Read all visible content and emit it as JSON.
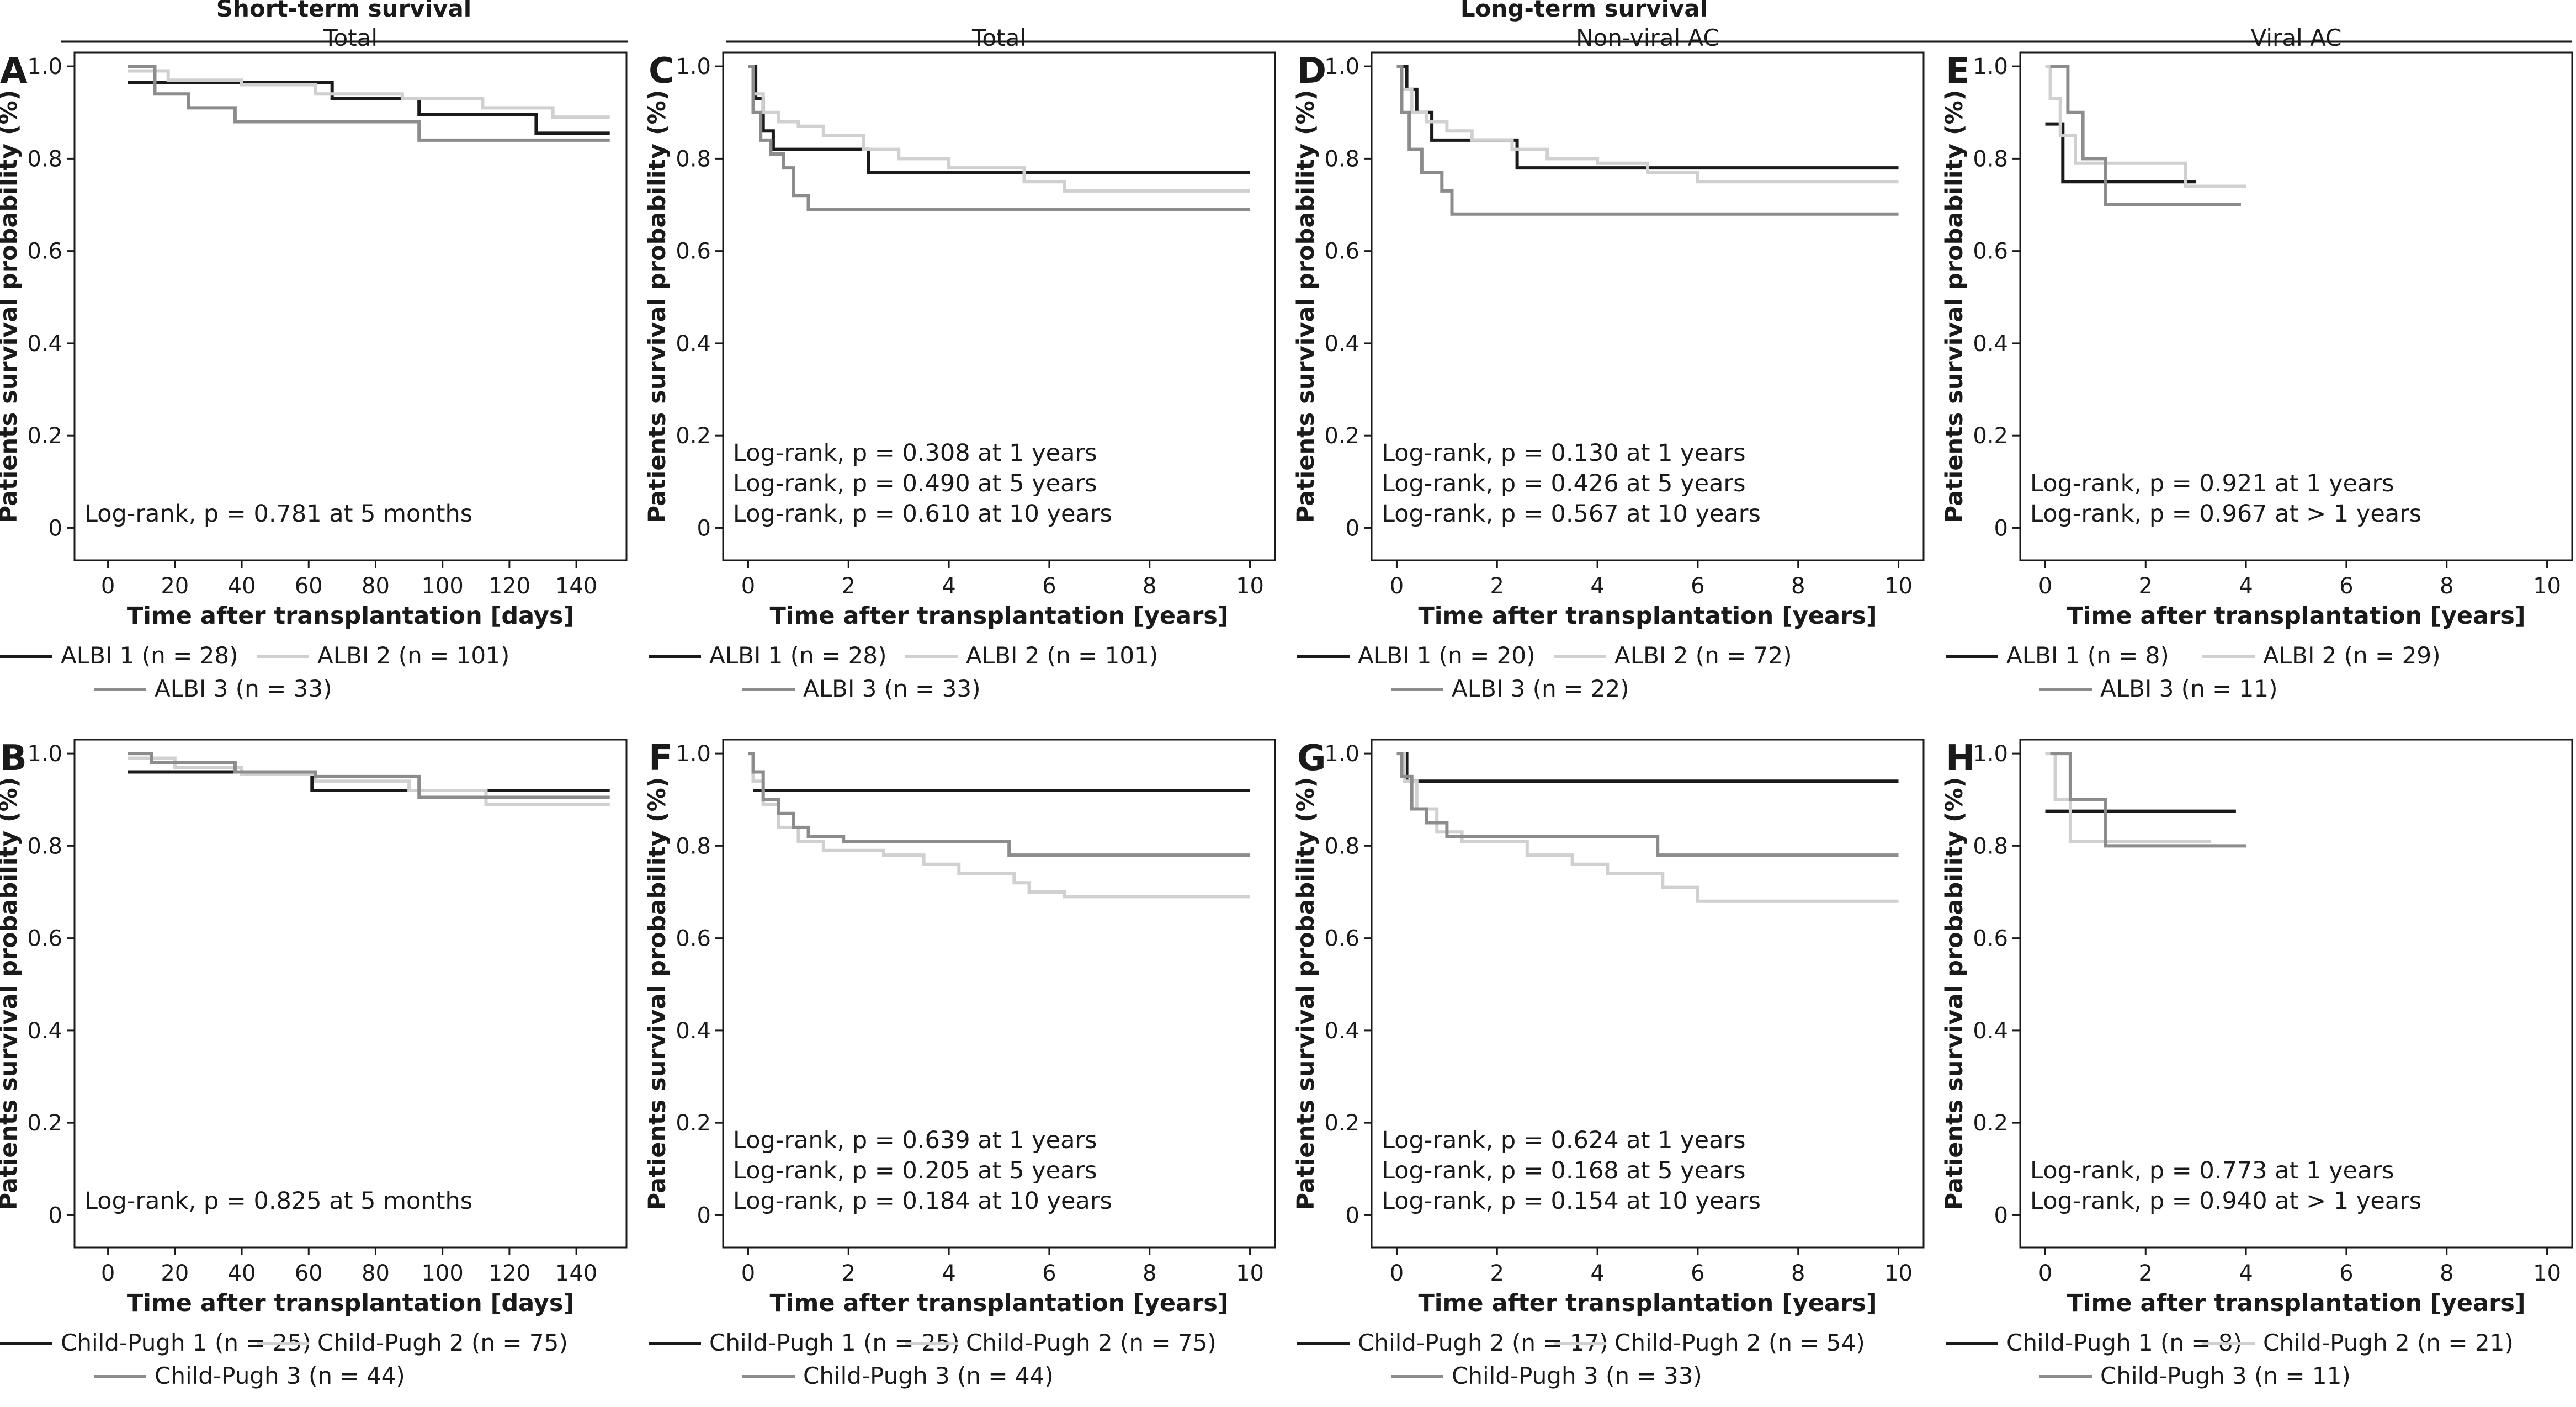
{
  "headers": {
    "short": "Short-term survival",
    "long": "Long-term survival"
  },
  "colors": {
    "group1": "#1a1a1a",
    "group2": "#d0d0d0",
    "group3": "#8c8c8c",
    "axis": "#1a1a1a"
  },
  "chart_data": [
    {
      "id": "A",
      "type": "line",
      "title": "Total",
      "xlabel": "Time after transplantation [days]",
      "ylabel": "Patients survival probability (%)",
      "xlim": [
        -10,
        155
      ],
      "xticks": [
        0,
        20,
        40,
        60,
        80,
        100,
        120,
        140
      ],
      "xticklabels": [
        "0",
        "20",
        "40",
        "60",
        "80",
        "100",
        "120",
        "140"
      ],
      "ylim": [
        -0.07,
        1.03
      ],
      "yticks": [
        0,
        0.2,
        0.4,
        0.6,
        0.8,
        1.0
      ],
      "yticklabels": [
        "0",
        "0.2",
        "0.4",
        "0.6",
        "0.8",
        "1.0"
      ],
      "annotations": [
        "Log-rank, p = 0.781 at 5 months"
      ],
      "series": [
        {
          "name": "ALBI 1 (n = 28)",
          "x": [
            6,
            67,
            67,
            93,
            93,
            128,
            128,
            150
          ],
          "y": [
            0.965,
            0.965,
            0.93,
            0.93,
            0.895,
            0.895,
            0.855,
            0.855
          ]
        },
        {
          "name": "ALBI 2 (n = 101)",
          "x": [
            6,
            18,
            18,
            40,
            40,
            62,
            62,
            88,
            88,
            112,
            112,
            133,
            133,
            150
          ],
          "y": [
            0.99,
            0.99,
            0.97,
            0.97,
            0.96,
            0.96,
            0.94,
            0.94,
            0.93,
            0.93,
            0.91,
            0.91,
            0.89,
            0.89
          ]
        },
        {
          "name": "ALBI 3 (n = 33)",
          "x": [
            6,
            14,
            14,
            24,
            24,
            38,
            38,
            93,
            93,
            150
          ],
          "y": [
            1.0,
            1.0,
            0.94,
            0.94,
            0.91,
            0.91,
            0.88,
            0.88,
            0.84,
            0.84
          ]
        }
      ]
    },
    {
      "id": "C",
      "type": "line",
      "title": "Total",
      "xlabel": "Time after transplantation [years]",
      "ylabel": "Patients survival probability (%)",
      "xlim": [
        -0.5,
        10.5
      ],
      "xticks": [
        0,
        2,
        4,
        6,
        8,
        10
      ],
      "xticklabels": [
        "0",
        "2",
        "4",
        "6",
        "8",
        "10"
      ],
      "ylim": [
        -0.07,
        1.03
      ],
      "yticks": [
        0,
        0.2,
        0.4,
        0.6,
        0.8,
        1.0
      ],
      "yticklabels": [
        "0",
        "0.2",
        "0.4",
        "0.6",
        "0.8",
        "1.0"
      ],
      "annotations": [
        "Log-rank, p = 0.308 at 1 years",
        "Log-rank, p = 0.490 at 5 years",
        "Log-rank, p = 0.610 at 10 years"
      ],
      "series": [
        {
          "name": "ALBI 1 (n = 28)",
          "x": [
            0,
            0.15,
            0.15,
            0.3,
            0.3,
            0.5,
            0.5,
            2.4,
            2.4,
            10
          ],
          "y": [
            1.0,
            1.0,
            0.93,
            0.93,
            0.86,
            0.86,
            0.82,
            0.82,
            0.77,
            0.77
          ]
        },
        {
          "name": "ALBI 2 (n = 101)",
          "x": [
            0,
            0.1,
            0.1,
            0.3,
            0.3,
            0.6,
            0.6,
            1.0,
            1.0,
            1.5,
            1.5,
            2.3,
            2.3,
            3.0,
            3.0,
            4.0,
            4.0,
            5.5,
            5.5,
            6.3,
            6.3,
            10
          ],
          "y": [
            1.0,
            1.0,
            0.94,
            0.94,
            0.9,
            0.9,
            0.88,
            0.88,
            0.87,
            0.87,
            0.85,
            0.85,
            0.82,
            0.82,
            0.8,
            0.8,
            0.78,
            0.78,
            0.75,
            0.75,
            0.73,
            0.73
          ]
        },
        {
          "name": "ALBI 3 (n = 33)",
          "x": [
            0,
            0.1,
            0.1,
            0.25,
            0.25,
            0.45,
            0.45,
            0.7,
            0.7,
            0.9,
            0.9,
            1.2,
            1.2,
            10
          ],
          "y": [
            1.0,
            1.0,
            0.9,
            0.9,
            0.84,
            0.84,
            0.81,
            0.81,
            0.78,
            0.78,
            0.72,
            0.72,
            0.69,
            0.69
          ]
        }
      ]
    },
    {
      "id": "D",
      "type": "line",
      "title": "Non-viral AC",
      "xlabel": "Time after transplantation [years]",
      "ylabel": "Patients survival probability (%)",
      "xlim": [
        -0.5,
        10.5
      ],
      "xticks": [
        0,
        2,
        4,
        6,
        8,
        10
      ],
      "xticklabels": [
        "0",
        "2",
        "4",
        "6",
        "8",
        "10"
      ],
      "ylim": [
        -0.07,
        1.03
      ],
      "yticks": [
        0,
        0.2,
        0.4,
        0.6,
        0.8,
        1.0
      ],
      "yticklabels": [
        "0",
        "0.2",
        "0.4",
        "0.6",
        "0.8",
        "1.0"
      ],
      "annotations": [
        "Log-rank, p = 0.130 at 1 years",
        "Log-rank, p = 0.426 at 5 years",
        "Log-rank, p = 0.567 at 10 years"
      ],
      "series": [
        {
          "name": "ALBI 1 (n = 20)",
          "x": [
            0,
            0.2,
            0.2,
            0.4,
            0.4,
            0.7,
            0.7,
            2.4,
            2.4,
            10
          ],
          "y": [
            1.0,
            1.0,
            0.95,
            0.95,
            0.9,
            0.9,
            0.84,
            0.84,
            0.78,
            0.78
          ]
        },
        {
          "name": "ALBI 2 (n = 72)",
          "x": [
            0,
            0.1,
            0.1,
            0.3,
            0.3,
            0.6,
            0.6,
            1.0,
            1.0,
            1.5,
            1.5,
            2.3,
            2.3,
            3.0,
            3.0,
            4.0,
            4.0,
            5.0,
            5.0,
            6.0,
            6.0,
            10
          ],
          "y": [
            1.0,
            1.0,
            0.95,
            0.95,
            0.9,
            0.9,
            0.88,
            0.88,
            0.86,
            0.86,
            0.84,
            0.84,
            0.82,
            0.82,
            0.8,
            0.8,
            0.79,
            0.79,
            0.77,
            0.77,
            0.75,
            0.75
          ]
        },
        {
          "name": "ALBI 3 (n = 22)",
          "x": [
            0,
            0.1,
            0.1,
            0.25,
            0.25,
            0.5,
            0.5,
            0.9,
            0.9,
            1.1,
            1.1,
            10
          ],
          "y": [
            1.0,
            1.0,
            0.9,
            0.9,
            0.82,
            0.82,
            0.77,
            0.77,
            0.73,
            0.73,
            0.68,
            0.68
          ]
        }
      ]
    },
    {
      "id": "E",
      "type": "line",
      "title": "Viral AC",
      "xlabel": "Time after transplantation [years]",
      "ylabel": "Patients survival probability (%)",
      "xlim": [
        -0.5,
        10.5
      ],
      "xticks": [
        0,
        2,
        4,
        6,
        8,
        10
      ],
      "xticklabels": [
        "0",
        "2",
        "4",
        "6",
        "8",
        "10"
      ],
      "ylim": [
        -0.07,
        1.03
      ],
      "yticks": [
        0,
        0.2,
        0.4,
        0.6,
        0.8,
        1.0
      ],
      "yticklabels": [
        "0",
        "0.2",
        "0.4",
        "0.6",
        "0.8",
        "1.0"
      ],
      "annotations": [
        "Log-rank, p = 0.921 at 1 years",
        "Log-rank, p = 0.967 at > 1 years"
      ],
      "series": [
        {
          "name": "ALBI 1 (n = 8)",
          "x": [
            0,
            0.35,
            0.35,
            3.0
          ],
          "y": [
            0.875,
            0.875,
            0.75,
            0.75
          ]
        },
        {
          "name": "ALBI 2 (n = 29)",
          "x": [
            0,
            0.1,
            0.1,
            0.3,
            0.3,
            0.6,
            0.6,
            2.8,
            2.8,
            4.0
          ],
          "y": [
            1.0,
            1.0,
            0.93,
            0.93,
            0.85,
            0.85,
            0.79,
            0.79,
            0.74,
            0.74
          ]
        },
        {
          "name": "ALBI 3 (n = 11)",
          "x": [
            0.1,
            0.45,
            0.45,
            0.75,
            0.75,
            1.2,
            1.2,
            3.9
          ],
          "y": [
            1.0,
            1.0,
            0.9,
            0.9,
            0.8,
            0.8,
            0.7,
            0.7
          ]
        }
      ]
    },
    {
      "id": "B",
      "type": "line",
      "title": "",
      "xlabel": "Time after transplantation [days]",
      "ylabel": "Patients survival probability (%)",
      "xlim": [
        -10,
        155
      ],
      "xticks": [
        0,
        20,
        40,
        60,
        80,
        100,
        120,
        140
      ],
      "xticklabels": [
        "0",
        "20",
        "40",
        "60",
        "80",
        "100",
        "120",
        "140"
      ],
      "ylim": [
        -0.07,
        1.03
      ],
      "yticks": [
        0,
        0.2,
        0.4,
        0.6,
        0.8,
        1.0
      ],
      "yticklabels": [
        "0",
        "0.2",
        "0.4",
        "0.6",
        "0.8",
        "1.0"
      ],
      "annotations": [
        "Log-rank, p = 0.825 at 5 months"
      ],
      "series": [
        {
          "name": "Child-Pugh 1 (n = 25)",
          "x": [
            6,
            61,
            61,
            114,
            114,
            150
          ],
          "y": [
            0.96,
            0.96,
            0.92,
            0.92,
            0.92,
            0.92
          ]
        },
        {
          "name": "Child-Pugh 2 (n = 75)",
          "x": [
            6,
            20,
            20,
            40,
            40,
            62,
            62,
            90,
            90,
            113,
            113,
            150
          ],
          "y": [
            0.99,
            0.99,
            0.97,
            0.97,
            0.955,
            0.955,
            0.94,
            0.94,
            0.92,
            0.92,
            0.89,
            0.89
          ]
        },
        {
          "name": "Child-Pugh 3 (n = 44)",
          "x": [
            6,
            13,
            13,
            38,
            38,
            62,
            62,
            93,
            93,
            150
          ],
          "y": [
            1.0,
            1.0,
            0.98,
            0.98,
            0.96,
            0.96,
            0.95,
            0.95,
            0.905,
            0.905
          ]
        }
      ]
    },
    {
      "id": "F",
      "type": "line",
      "title": "",
      "xlabel": "Time after transplantation [years]",
      "ylabel": "Patients survival probability (%)",
      "xlim": [
        -0.5,
        10.5
      ],
      "xticks": [
        0,
        2,
        4,
        6,
        8,
        10
      ],
      "xticklabels": [
        "0",
        "2",
        "4",
        "6",
        "8",
        "10"
      ],
      "ylim": [
        -0.07,
        1.03
      ],
      "yticks": [
        0,
        0.2,
        0.4,
        0.6,
        0.8,
        1.0
      ],
      "yticklabels": [
        "0",
        "0.2",
        "0.4",
        "0.6",
        "0.8",
        "1.0"
      ],
      "annotations": [
        "Log-rank, p = 0.639 at 1 years",
        "Log-rank, p = 0.205 at 5 years",
        "Log-rank, p = 0.184 at 10 years"
      ],
      "series": [
        {
          "name": "Child-Pugh 1 (n = 25)",
          "x": [
            0.1,
            10
          ],
          "y": [
            0.92,
            0.92
          ]
        },
        {
          "name": "Child-Pugh 2 (n = 75)",
          "x": [
            0,
            0.1,
            0.1,
            0.3,
            0.3,
            0.6,
            0.6,
            1.0,
            1.0,
            1.5,
            1.5,
            2.7,
            2.7,
            3.5,
            3.5,
            4.2,
            4.2,
            5.3,
            5.3,
            5.6,
            5.6,
            6.3,
            6.3,
            10
          ],
          "y": [
            1.0,
            1.0,
            0.94,
            0.94,
            0.89,
            0.89,
            0.84,
            0.84,
            0.81,
            0.81,
            0.79,
            0.79,
            0.78,
            0.78,
            0.76,
            0.76,
            0.74,
            0.74,
            0.72,
            0.72,
            0.7,
            0.7,
            0.69,
            0.69
          ]
        },
        {
          "name": "Child-Pugh 3 (n = 44)",
          "x": [
            0,
            0.1,
            0.1,
            0.3,
            0.3,
            0.6,
            0.6,
            0.9,
            0.9,
            1.2,
            1.2,
            1.9,
            1.9,
            5.2,
            5.2,
            10
          ],
          "y": [
            1.0,
            1.0,
            0.96,
            0.96,
            0.9,
            0.9,
            0.87,
            0.87,
            0.84,
            0.84,
            0.82,
            0.82,
            0.81,
            0.81,
            0.78,
            0.78
          ]
        }
      ]
    },
    {
      "id": "G",
      "type": "line",
      "title": "",
      "xlabel": "Time after transplantation [years]",
      "ylabel": "Patients survival probability (%)",
      "xlim": [
        -0.5,
        10.5
      ],
      "xticks": [
        0,
        2,
        4,
        6,
        8,
        10
      ],
      "xticklabels": [
        "0",
        "2",
        "4",
        "6",
        "8",
        "10"
      ],
      "ylim": [
        -0.07,
        1.03
      ],
      "yticks": [
        0,
        0.2,
        0.4,
        0.6,
        0.8,
        1.0
      ],
      "yticklabels": [
        "0",
        "0.2",
        "0.4",
        "0.6",
        "0.8",
        "1.0"
      ],
      "annotations": [
        "Log-rank, p = 0.624 at 1 years",
        "Log-rank, p = 0.168 at 5 years",
        "Log-rank, p = 0.154 at 10 years"
      ],
      "series": [
        {
          "name": "Child-Pugh 2 (n = 17)",
          "x": [
            0.1,
            0.2,
            0.2,
            10
          ],
          "y": [
            1.0,
            1.0,
            0.94,
            0.94
          ]
        },
        {
          "name": "Child-Pugh 2 (n = 54)",
          "x": [
            0,
            0.15,
            0.15,
            0.4,
            0.4,
            0.8,
            0.8,
            1.3,
            1.3,
            2.6,
            2.6,
            3.5,
            3.5,
            4.2,
            4.2,
            5.3,
            5.3,
            6.0,
            6.0,
            10
          ],
          "y": [
            1.0,
            1.0,
            0.94,
            0.94,
            0.88,
            0.88,
            0.83,
            0.83,
            0.81,
            0.81,
            0.78,
            0.78,
            0.76,
            0.76,
            0.74,
            0.74,
            0.71,
            0.71,
            0.68,
            0.68
          ]
        },
        {
          "name": "Child-Pugh 3 (n = 33)",
          "x": [
            0,
            0.1,
            0.1,
            0.3,
            0.3,
            0.6,
            0.6,
            1.0,
            1.0,
            5.2,
            5.2,
            10
          ],
          "y": [
            1.0,
            1.0,
            0.95,
            0.95,
            0.88,
            0.88,
            0.85,
            0.85,
            0.82,
            0.82,
            0.78,
            0.78
          ]
        }
      ]
    },
    {
      "id": "H",
      "type": "line",
      "title": "",
      "xlabel": "Time after transplantation [years]",
      "ylabel": "Patients survival probability (%)",
      "xlim": [
        -0.5,
        10.5
      ],
      "xticks": [
        0,
        2,
        4,
        6,
        8,
        10
      ],
      "xticklabels": [
        "0",
        "2",
        "4",
        "6",
        "8",
        "10"
      ],
      "ylim": [
        -0.07,
        1.03
      ],
      "yticks": [
        0,
        0.2,
        0.4,
        0.6,
        0.8,
        1.0
      ],
      "yticklabels": [
        "0",
        "0.2",
        "0.4",
        "0.6",
        "0.8",
        "1.0"
      ],
      "annotations": [
        "Log-rank, p = 0.773 at 1 years",
        "Log-rank, p = 0.940 at > 1 years"
      ],
      "series": [
        {
          "name": "Child-Pugh 1 (n = 8)",
          "x": [
            0,
            3.8
          ],
          "y": [
            0.875,
            0.875
          ]
        },
        {
          "name": "Child-Pugh 2 (n = 21)",
          "x": [
            0,
            0.2,
            0.2,
            0.5,
            0.5,
            3.3
          ],
          "y": [
            1.0,
            1.0,
            0.9,
            0.9,
            0.81,
            0.81
          ]
        },
        {
          "name": "Child-Pugh 3 (n = 11)",
          "x": [
            0.1,
            0.5,
            0.5,
            1.2,
            1.2,
            4.0
          ],
          "y": [
            1.0,
            1.0,
            0.9,
            0.9,
            0.8,
            0.8
          ]
        }
      ]
    }
  ]
}
